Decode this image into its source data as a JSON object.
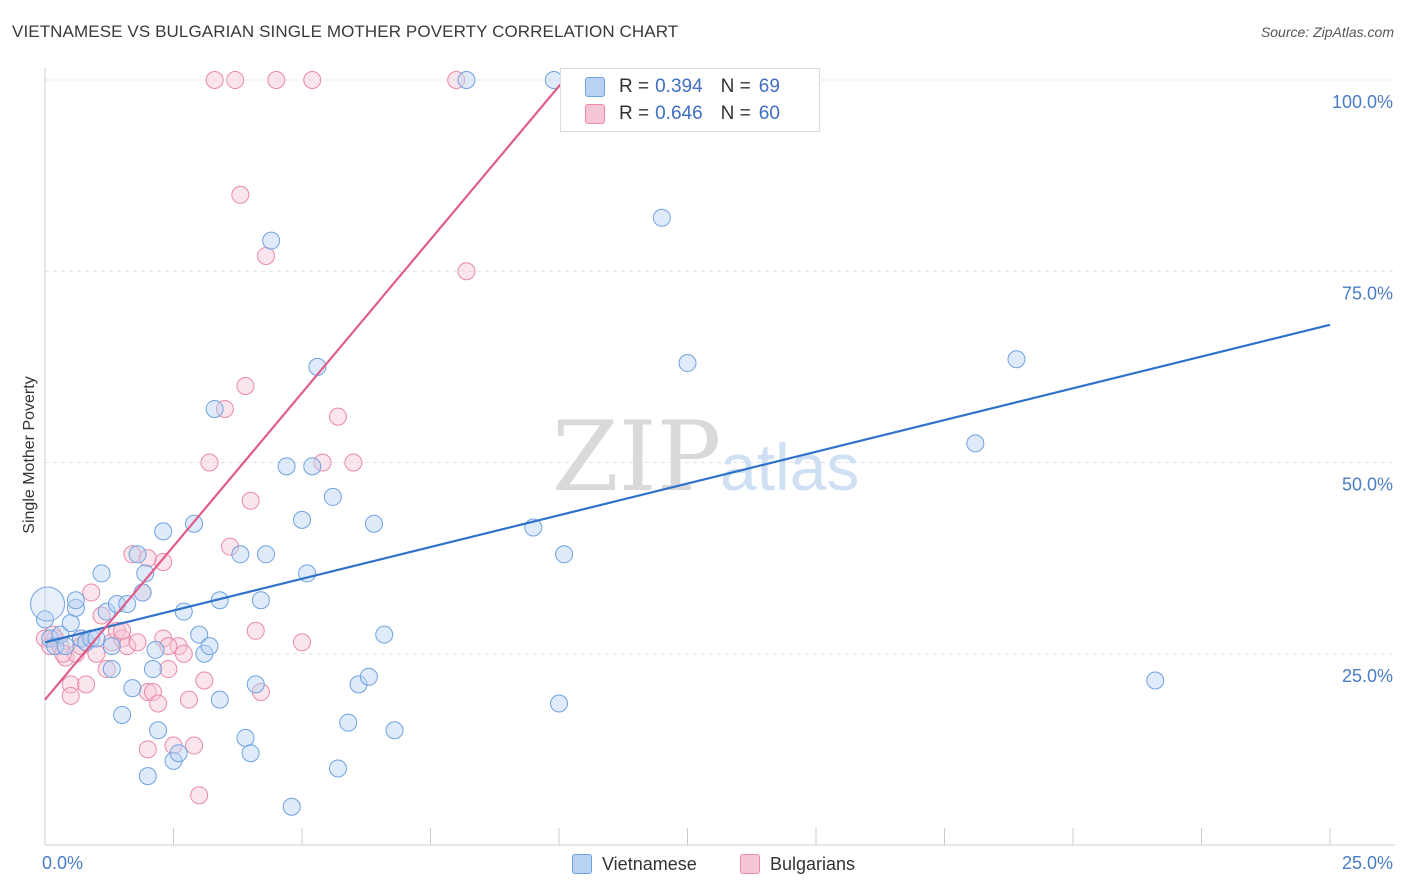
{
  "title": "VIETNAMESE VS BULGARIAN SINGLE MOTHER POVERTY CORRELATION CHART",
  "source": "Source: ZipAtlas.com",
  "watermark": {
    "zip": "ZIP",
    "atlas": "atlas"
  },
  "colors": {
    "blue": "#6fa3e0",
    "blue_fill": "#b9d2f3",
    "blue_line": "#2f72c9",
    "pink": "#e98aa8",
    "pink_fill": "#f7c6d6",
    "pink_line": "#e05c8a",
    "axis_text": "#4a7cc7",
    "grid": "#e2e2e2"
  },
  "legend": {
    "rows": [
      {
        "r_label": "R = ",
        "r_value": "0.394",
        "n_label": "N = ",
        "n_value": "69"
      },
      {
        "r_label": "R = ",
        "r_value": "0.646",
        "n_label": "N = ",
        "n_value": "60"
      }
    ],
    "series_names": [
      "Vietnamese",
      "Bulgarians"
    ]
  },
  "chart_data": {
    "type": "scatter",
    "title": "VIETNAMESE VS BULGARIAN SINGLE MOTHER POVERTY CORRELATION CHART",
    "xlabel": "",
    "ylabel": "Single Mother Poverty",
    "xlim": [
      0,
      25
    ],
    "ylim": [
      0,
      100
    ],
    "x_tick_labels": [
      "0.0%",
      "25.0%"
    ],
    "y_tick_labels": [
      "25.0%",
      "50.0%",
      "75.0%",
      "100.0%"
    ],
    "y_ticks": [
      25,
      50,
      75,
      100
    ],
    "grid": true,
    "series": [
      {
        "name": "Vietnamese",
        "r": 0.394,
        "n": 69,
        "trend": {
          "x": [
            0,
            25
          ],
          "y": [
            26.5,
            68
          ]
        },
        "points": [
          [
            0.0,
            29.5
          ],
          [
            0.1,
            27
          ],
          [
            0.2,
            26
          ],
          [
            0.3,
            27.5
          ],
          [
            0.4,
            26
          ],
          [
            0.5,
            29
          ],
          [
            0.6,
            31
          ],
          [
            0.6,
            32
          ],
          [
            0.7,
            27
          ],
          [
            0.8,
            26.5
          ],
          [
            0.9,
            27
          ],
          [
            1.0,
            27
          ],
          [
            1.1,
            35.5
          ],
          [
            1.2,
            30.5
          ],
          [
            1.3,
            23
          ],
          [
            1.3,
            26
          ],
          [
            1.4,
            31.5
          ],
          [
            1.5,
            17
          ],
          [
            1.6,
            31.5
          ],
          [
            1.7,
            20.5
          ],
          [
            1.8,
            38
          ],
          [
            1.9,
            33
          ],
          [
            1.95,
            35.5
          ],
          [
            2.0,
            9
          ],
          [
            2.1,
            23
          ],
          [
            2.15,
            25.5
          ],
          [
            2.2,
            15
          ],
          [
            2.3,
            41
          ],
          [
            2.5,
            11
          ],
          [
            2.6,
            12
          ],
          [
            2.7,
            30.5
          ],
          [
            2.9,
            42
          ],
          [
            3.0,
            27.5
          ],
          [
            3.1,
            25
          ],
          [
            3.2,
            26
          ],
          [
            3.3,
            57
          ],
          [
            3.4,
            19
          ],
          [
            3.4,
            32
          ],
          [
            3.8,
            38
          ],
          [
            3.9,
            14
          ],
          [
            4.0,
            12
          ],
          [
            4.1,
            21
          ],
          [
            4.2,
            32
          ],
          [
            4.3,
            38
          ],
          [
            4.4,
            79
          ],
          [
            4.7,
            49.5
          ],
          [
            4.8,
            5
          ],
          [
            5.0,
            42.5
          ],
          [
            5.1,
            35.5
          ],
          [
            5.2,
            49.5
          ],
          [
            5.3,
            62.5
          ],
          [
            5.6,
            45.5
          ],
          [
            5.7,
            10
          ],
          [
            5.9,
            16
          ],
          [
            6.1,
            21
          ],
          [
            6.3,
            22
          ],
          [
            6.4,
            42
          ],
          [
            6.6,
            27.5
          ],
          [
            6.8,
            15
          ],
          [
            8.2,
            100
          ],
          [
            9.5,
            41.5
          ],
          [
            9.9,
            100
          ],
          [
            10.0,
            18.5
          ],
          [
            10.1,
            38
          ],
          [
            12.0,
            82
          ],
          [
            12.5,
            63
          ],
          [
            18.1,
            52.5
          ],
          [
            18.9,
            63.5
          ],
          [
            21.6,
            21.5
          ]
        ]
      },
      {
        "name": "Bulgarians",
        "r": 0.646,
        "n": 60,
        "trend": {
          "x": [
            0,
            10.1
          ],
          "y": [
            19,
            100
          ]
        },
        "points": [
          [
            0.0,
            27
          ],
          [
            0.1,
            26
          ],
          [
            0.2,
            27
          ],
          [
            0.3,
            26
          ],
          [
            0.4,
            24.5
          ],
          [
            0.5,
            21
          ],
          [
            0.5,
            19.5
          ],
          [
            0.6,
            25
          ],
          [
            0.7,
            27
          ],
          [
            0.8,
            21
          ],
          [
            0.9,
            33
          ],
          [
            1.0,
            25
          ],
          [
            1.1,
            30
          ],
          [
            1.2,
            23
          ],
          [
            1.3,
            26.5
          ],
          [
            1.4,
            28
          ],
          [
            1.5,
            27
          ],
          [
            1.6,
            26
          ],
          [
            1.7,
            38
          ],
          [
            1.8,
            26.5
          ],
          [
            1.9,
            33
          ],
          [
            2.0,
            12.5
          ],
          [
            2.0,
            20
          ],
          [
            2.1,
            20
          ],
          [
            2.2,
            18.5
          ],
          [
            2.3,
            27
          ],
          [
            2.3,
            37
          ],
          [
            2.4,
            23
          ],
          [
            2.5,
            13
          ],
          [
            2.6,
            26
          ],
          [
            2.7,
            25
          ],
          [
            2.8,
            19
          ],
          [
            2.9,
            13
          ],
          [
            3.0,
            6.5
          ],
          [
            3.1,
            21.5
          ],
          [
            3.2,
            50
          ],
          [
            3.3,
            100
          ],
          [
            3.5,
            57
          ],
          [
            3.6,
            39
          ],
          [
            3.7,
            100
          ],
          [
            3.8,
            85
          ],
          [
            3.9,
            60
          ],
          [
            4.0,
            45
          ],
          [
            4.1,
            28
          ],
          [
            4.2,
            20
          ],
          [
            4.3,
            77
          ],
          [
            4.5,
            100
          ],
          [
            5.0,
            26.5
          ],
          [
            5.2,
            100
          ],
          [
            5.4,
            50
          ],
          [
            5.7,
            56
          ],
          [
            6.0,
            50
          ],
          [
            8.0,
            100
          ],
          [
            8.2,
            75
          ],
          [
            0.15,
            27.5
          ],
          [
            0.35,
            25
          ],
          [
            0.7,
            26
          ],
          [
            1.5,
            28
          ],
          [
            2.0,
            37.5
          ],
          [
            2.4,
            26
          ]
        ]
      }
    ]
  }
}
